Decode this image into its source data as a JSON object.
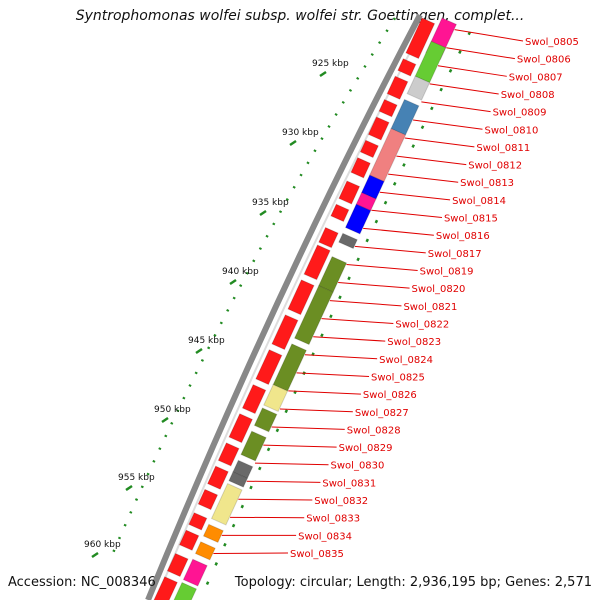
{
  "title": "Syntrophomonas wolfei subsp. wolfei str. Goettingen, complet...",
  "accession": "Accession: NC_008346",
  "topology": "Topology: circular; Length: 2,936,195 bp; Genes: 2,571",
  "colors": {
    "backbone": "#888888",
    "tick": "#228b22",
    "gene_label": "#e00000",
    "forward_gene": "#ff1a1a",
    "olive": "#6b8e23",
    "khaki": "#f0e68c",
    "salmon": "#f08080",
    "steel": "#4682b4",
    "blue": "#0000ff",
    "gray": "#696969",
    "orange": "#ff8c00",
    "magenta": "#ff1493",
    "lime": "#66cc33"
  },
  "kbp_labels": [
    "925 kbp",
    "930 kbp",
    "935 kbp",
    "940 kbp",
    "945 kbp",
    "950 kbp",
    "955 kbp",
    "960 kbp"
  ],
  "genes": [
    "Swol_0805",
    "Swol_0806",
    "Swol_0807",
    "Swol_0808",
    "Swol_0809",
    "Swol_0810",
    "Swol_0811",
    "Swol_0812",
    "Swol_0813",
    "Swol_0814",
    "Swol_0815",
    "Swol_0816",
    "Swol_0817",
    "Swol_0819",
    "Swol_0820",
    "Swol_0821",
    "Swol_0822",
    "Swol_0823",
    "Swol_0824",
    "Swol_0825",
    "Swol_0826",
    "Swol_0827",
    "Swol_0828",
    "Swol_0829",
    "Swol_0830",
    "Swol_0831",
    "Swol_0832",
    "Swol_0833",
    "Swol_0834",
    "Swol_0835"
  ]
}
